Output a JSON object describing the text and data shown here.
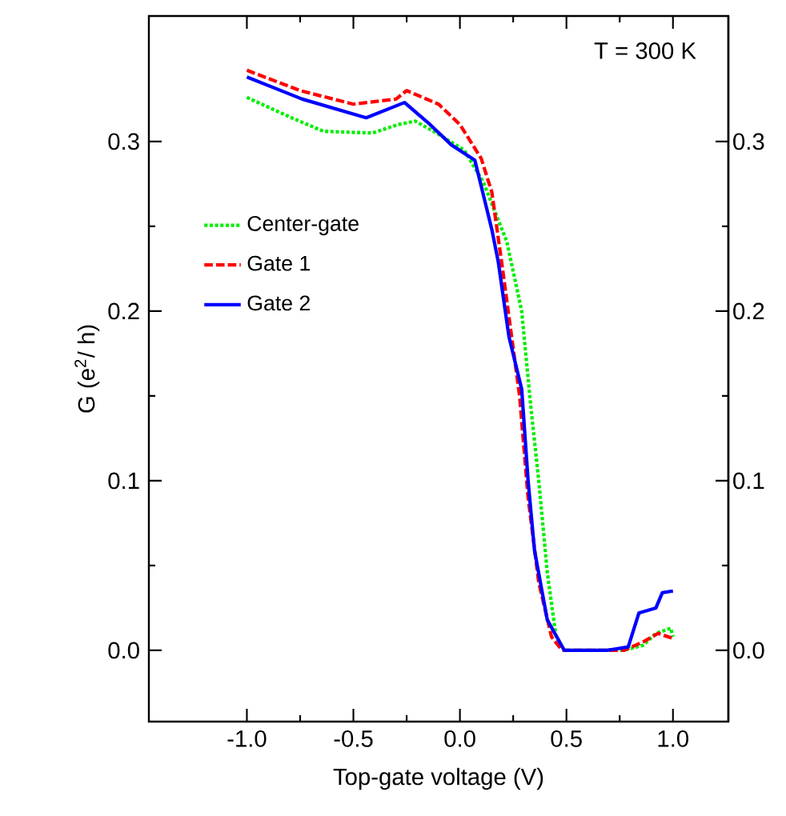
{
  "chart_data": {
    "type": "line",
    "xlabel": "Top-gate voltage (V)",
    "ylabel": "G (e$^{2}$/ h)",
    "annotations": [
      "T = 300 K"
    ],
    "xlim": [
      -1.46,
      1.26
    ],
    "ylim": [
      -0.042,
      0.374
    ],
    "y2lim": [
      -0.042,
      0.374
    ],
    "xticks": [
      {
        "value": -1.0,
        "label": "-1.0"
      },
      {
        "value": -0.5,
        "label": "-0.5"
      },
      {
        "value": 0.0,
        "label": "0.0"
      },
      {
        "value": 0.5,
        "label": "0.5"
      },
      {
        "value": 1.0,
        "label": "1.0"
      }
    ],
    "yticks": [
      {
        "value": 0.0,
        "label": "0.0"
      },
      {
        "value": 0.1,
        "label": "0.1"
      },
      {
        "value": 0.2,
        "label": "0.2"
      },
      {
        "value": 0.3,
        "label": "0.3"
      }
    ],
    "y2ticks": [
      {
        "value": 0.0,
        "label": "0.0"
      },
      {
        "value": 0.1,
        "label": "0.1"
      },
      {
        "value": 0.2,
        "label": "0.2"
      },
      {
        "value": 0.3,
        "label": "0.3"
      }
    ],
    "legend": "top left",
    "grid": false,
    "marker": "none",
    "series": [
      {
        "name": "Center-gate",
        "color": "#00ee00",
        "line_style": "dotted",
        "x": [
          -1.0,
          -0.79,
          -0.64,
          -0.41,
          -0.29,
          -0.21,
          -0.11,
          0.02,
          0.11,
          0.22,
          0.29,
          0.33,
          0.37,
          0.41,
          0.45,
          0.49,
          0.77,
          0.86,
          0.92,
          0.99,
          1.0
        ],
        "values": [
          0.326,
          0.314,
          0.306,
          0.305,
          0.31,
          0.312,
          0.305,
          0.295,
          0.276,
          0.241,
          0.2,
          0.147,
          0.1,
          0.046,
          0.009,
          0.0,
          0.0,
          0.003,
          0.01,
          0.013,
          0.008
        ]
      },
      {
        "name": "Gate 1",
        "color": "#ff0000",
        "line_style": "dashed",
        "x": [
          -1.0,
          -0.75,
          -0.5,
          -0.3,
          -0.25,
          -0.1,
          0.0,
          0.1,
          0.15,
          0.2,
          0.28,
          0.32,
          0.37,
          0.43,
          0.48,
          0.77,
          0.86,
          0.93,
          1.0
        ],
        "values": [
          0.342,
          0.33,
          0.322,
          0.325,
          0.33,
          0.322,
          0.31,
          0.29,
          0.27,
          0.225,
          0.15,
          0.09,
          0.04,
          0.008,
          0.0,
          0.0,
          0.005,
          0.01,
          0.007
        ]
      },
      {
        "name": "Gate 2",
        "color": "#0000ff",
        "line_style": "solid",
        "x": [
          -1.0,
          -0.74,
          -0.44,
          -0.26,
          -0.14,
          -0.04,
          0.07,
          0.15,
          0.18,
          0.23,
          0.29,
          0.32,
          0.35,
          0.41,
          0.49,
          0.69,
          0.79,
          0.84,
          0.92,
          0.95,
          1.0
        ],
        "values": [
          0.338,
          0.325,
          0.314,
          0.323,
          0.31,
          0.298,
          0.289,
          0.248,
          0.229,
          0.185,
          0.154,
          0.1,
          0.059,
          0.018,
          0.0,
          0.0,
          0.002,
          0.022,
          0.025,
          0.034,
          0.035
        ]
      }
    ]
  }
}
